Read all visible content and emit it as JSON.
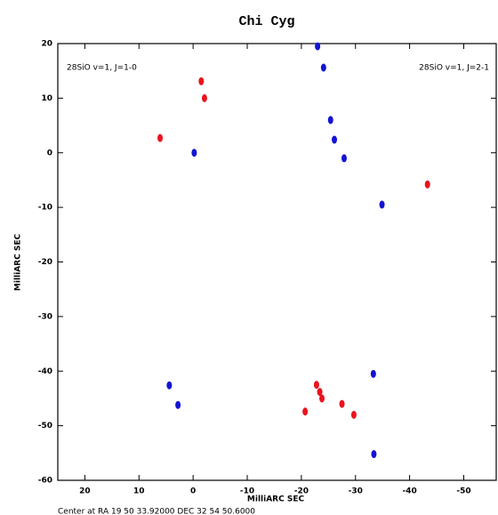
{
  "chart_data": {
    "type": "scatter",
    "title": "Chi Cyg",
    "xlabel": "MilliARC SEC",
    "ylabel": "MilliARC SEC",
    "footer": "Center at RA 19 50 33.92000  DEC 32 54 50.6000",
    "xlim": [
      25,
      -56
    ],
    "ylim": [
      -60,
      20
    ],
    "xticks": [
      20,
      10,
      0,
      -10,
      -20,
      -30,
      -40,
      -50
    ],
    "yticks": [
      20,
      10,
      0,
      -10,
      -20,
      -30,
      -40,
      -50,
      -60
    ],
    "series": [
      {
        "name": "28SiO v=1, J=1-0",
        "color": "#e8141e",
        "legend": "upper left",
        "x": [
          -1.5,
          -2.1,
          6.1,
          -43.3,
          -23.4,
          -22.8,
          -23.8,
          -29.7,
          -20.7,
          -27.5
        ],
        "y": [
          13.1,
          10,
          2.7,
          -5.8,
          -43.8,
          -42.5,
          -45,
          -48,
          -47.4,
          -46
        ]
      },
      {
        "name": "28SiO v=1, J=2-1",
        "color": "#1414d2",
        "legend": "upper right",
        "x": [
          -0.2,
          -26.1,
          -25.4,
          -27.9,
          -24.1,
          -23,
          -33.3,
          2.8,
          4.4,
          -33.4,
          -34.9
        ],
        "y": [
          0,
          2.4,
          6,
          -1,
          15.6,
          19.5,
          -40.5,
          -46.2,
          -42.6,
          -55.2,
          -9.5
        ]
      }
    ]
  }
}
